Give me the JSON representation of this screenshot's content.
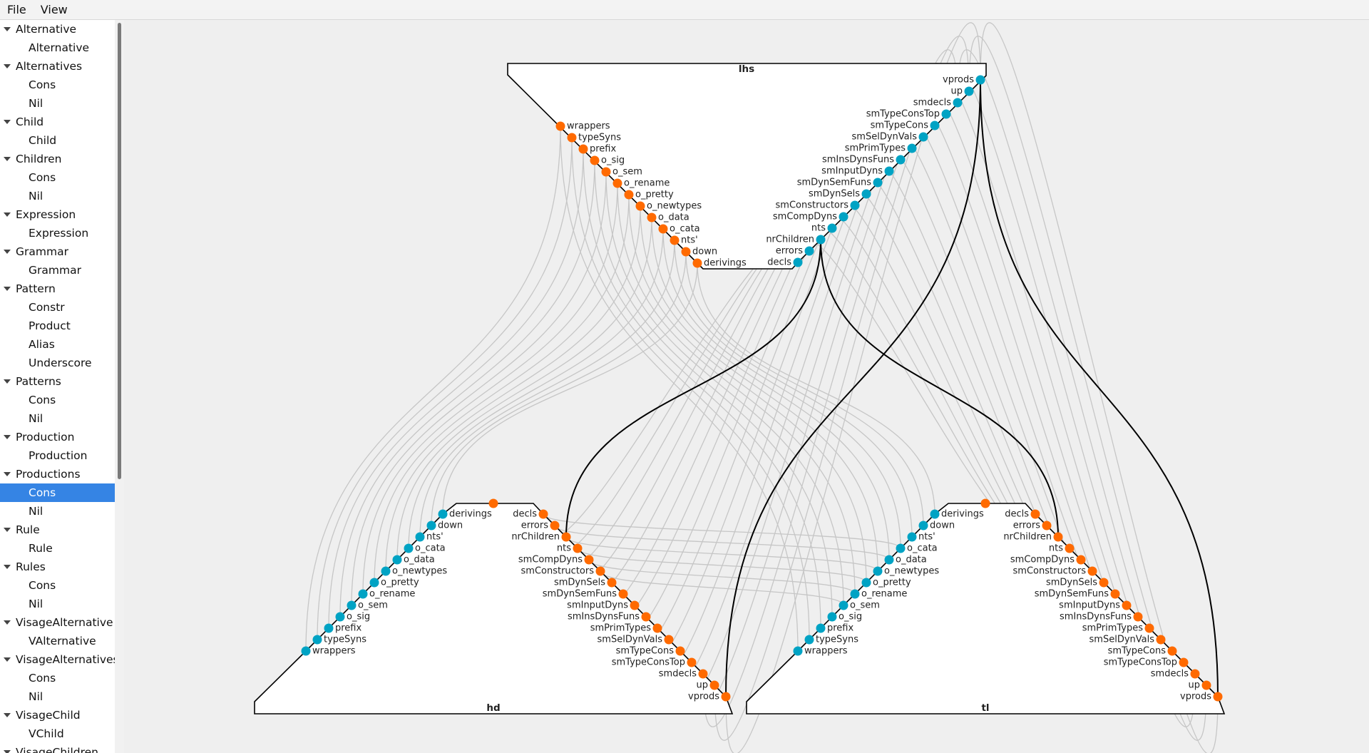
{
  "menu": {
    "file": "File",
    "view": "View"
  },
  "tree": [
    {
      "label": "Alternative",
      "children": [
        "Alternative"
      ]
    },
    {
      "label": "Alternatives",
      "children": [
        "Cons",
        "Nil"
      ]
    },
    {
      "label": "Child",
      "children": [
        "Child"
      ]
    },
    {
      "label": "Children",
      "children": [
        "Cons",
        "Nil"
      ]
    },
    {
      "label": "Expression",
      "children": [
        "Expression"
      ]
    },
    {
      "label": "Grammar",
      "children": [
        "Grammar"
      ]
    },
    {
      "label": "Pattern",
      "children": [
        "Constr",
        "Product",
        "Alias",
        "Underscore"
      ]
    },
    {
      "label": "Patterns",
      "children": [
        "Cons",
        "Nil"
      ]
    },
    {
      "label": "Production",
      "children": [
        "Production"
      ]
    },
    {
      "label": "Productions",
      "children": [
        "Cons",
        "Nil"
      ],
      "selected_child": 0
    },
    {
      "label": "Rule",
      "children": [
        "Rule"
      ]
    },
    {
      "label": "Rules",
      "children": [
        "Cons",
        "Nil"
      ]
    },
    {
      "label": "VisageAlternative",
      "children": [
        "VAlternative"
      ]
    },
    {
      "label": "VisageAlternatives",
      "children": [
        "Cons",
        "Nil"
      ]
    },
    {
      "label": "VisageChild",
      "children": [
        "VChild"
      ]
    },
    {
      "label": "VisageChildren",
      "children": []
    }
  ],
  "graph": {
    "colors": {
      "inherited": "#ff6a00",
      "synthesized": "#00a3c4",
      "edge": "#c6c6c6",
      "edge_highlight": "#000000"
    },
    "nodes": {
      "lhs": {
        "title": "lhs",
        "inherited": [
          "wrappers",
          "typeSyns",
          "prefix",
          "o_sig",
          "o_sem",
          "o_rename",
          "o_pretty",
          "o_newtypes",
          "o_data",
          "o_cata",
          "nts'",
          "down",
          "derivings"
        ],
        "synthesized": [
          "vprods",
          "up",
          "smdecls",
          "smTypeConsTop",
          "smTypeCons",
          "smSelDynVals",
          "smPrimTypes",
          "smInsDynsFuns",
          "smInputDyns",
          "smDynSemFuns",
          "smDynSels",
          "smConstructors",
          "smCompDyns",
          "nts",
          "nrChildren",
          "errors",
          "decls"
        ]
      },
      "hd": {
        "title": "hd",
        "inherited_labels": [
          "decls",
          "errors",
          "nrChildren",
          "nts",
          "smCompDyns",
          "smConstructors",
          "smDynSels",
          "smDynSemFuns",
          "smInputDyns",
          "smInsDynsFuns",
          "smPrimTypes",
          "smSelDynVals",
          "smTypeCons",
          "smTypeConsTop",
          "smdecls",
          "up",
          "vprods"
        ],
        "synthesized_labels": [
          "derivings",
          "down",
          "nts'",
          "o_cata",
          "o_data",
          "o_newtypes",
          "o_pretty",
          "o_rename",
          "o_sem",
          "o_sig",
          "prefix",
          "typeSyns",
          "wrappers"
        ]
      },
      "tl": {
        "title": "tl",
        "inherited_labels": [
          "decls",
          "errors",
          "nrChildren",
          "nts",
          "smCompDyns",
          "smConstructors",
          "smDynSels",
          "smDynSemFuns",
          "smInputDyns",
          "smInsDynsFuns",
          "smPrimTypes",
          "smSelDynVals",
          "smTypeCons",
          "smTypeConsTop",
          "smdecls",
          "up",
          "vprods"
        ],
        "synthesized_labels": [
          "derivings",
          "down",
          "nts'",
          "o_cata",
          "o_data",
          "o_newtypes",
          "o_pretty",
          "o_rename",
          "o_sem",
          "o_sig",
          "prefix",
          "typeSyns",
          "wrappers"
        ]
      }
    }
  }
}
